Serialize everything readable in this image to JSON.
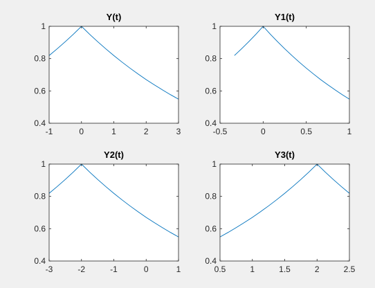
{
  "figure": {
    "background": "#f0f0f0",
    "axes_background": "#ffffff",
    "axis_color": "#262626",
    "line_color": "#0072bd"
  },
  "chart_data": [
    {
      "type": "line",
      "title": "Y(t)",
      "xlabel": "",
      "ylabel": "",
      "xlim": [
        -1,
        3
      ],
      "ylim": [
        0.4,
        1
      ],
      "xticks": [
        -1,
        0,
        1,
        2,
        3
      ],
      "xtick_labels": [
        "-1",
        "0",
        "1",
        "2",
        "3"
      ],
      "yticks": [
        0.4,
        0.6,
        0.8,
        1
      ],
      "ytick_labels": [
        "0.4",
        "0.6",
        "0.8",
        "1"
      ],
      "grid": false,
      "series": [
        {
          "x": [
            -1,
            -0.75,
            -0.5,
            -0.25,
            0,
            0.25,
            0.5,
            0.75,
            1,
            1.25,
            1.5,
            1.75,
            2,
            2.25,
            2.5,
            2.75,
            3
          ],
          "y": [
            0.819,
            0.861,
            0.905,
            0.951,
            1.0,
            0.951,
            0.905,
            0.861,
            0.819,
            0.779,
            0.741,
            0.705,
            0.67,
            0.638,
            0.607,
            0.577,
            0.549
          ]
        }
      ]
    },
    {
      "type": "line",
      "title": "Y1(t)",
      "xlabel": "",
      "ylabel": "",
      "xlim": [
        -0.5,
        1
      ],
      "ylim": [
        0.4,
        1
      ],
      "xticks": [
        -0.5,
        0,
        0.5,
        1
      ],
      "xtick_labels": [
        "-0.5",
        "0",
        "0.5",
        "1"
      ],
      "yticks": [
        0.4,
        0.6,
        0.8,
        1
      ],
      "ytick_labels": [
        "0.4",
        "0.6",
        "0.8",
        "1"
      ],
      "grid": false,
      "series": [
        {
          "x": [
            -0.333,
            -0.25,
            -0.1667,
            -0.0833,
            0,
            0.0833,
            0.1667,
            0.25,
            0.3333,
            0.4167,
            0.5,
            0.5833,
            0.6667,
            0.75,
            0.8333,
            0.9167,
            1
          ],
          "y": [
            0.819,
            0.861,
            0.905,
            0.951,
            1.0,
            0.951,
            0.905,
            0.861,
            0.819,
            0.779,
            0.741,
            0.705,
            0.67,
            0.638,
            0.607,
            0.577,
            0.549
          ]
        }
      ]
    },
    {
      "type": "line",
      "title": "Y2(t)",
      "xlabel": "",
      "ylabel": "",
      "xlim": [
        -3,
        1
      ],
      "ylim": [
        0.4,
        1
      ],
      "xticks": [
        -3,
        -2,
        -1,
        0,
        1
      ],
      "xtick_labels": [
        "-3",
        "-2",
        "-1",
        "0",
        "1"
      ],
      "yticks": [
        0.4,
        0.6,
        0.8,
        1
      ],
      "ytick_labels": [
        "0.4",
        "0.6",
        "0.8",
        "1"
      ],
      "grid": false,
      "series": [
        {
          "x": [
            -3,
            -2.75,
            -2.5,
            -2.25,
            -2,
            -1.75,
            -1.5,
            -1.25,
            -1,
            -0.75,
            -0.5,
            -0.25,
            0,
            0.25,
            0.5,
            0.75,
            1
          ],
          "y": [
            0.819,
            0.861,
            0.905,
            0.951,
            1.0,
            0.951,
            0.905,
            0.861,
            0.819,
            0.779,
            0.741,
            0.705,
            0.67,
            0.638,
            0.607,
            0.577,
            0.549
          ]
        }
      ]
    },
    {
      "type": "line",
      "title": "Y3(t)",
      "xlabel": "",
      "ylabel": "",
      "xlim": [
        0.5,
        2.5
      ],
      "ylim": [
        0.4,
        1
      ],
      "xticks": [
        0.5,
        1,
        1.5,
        2,
        2.5
      ],
      "xtick_labels": [
        "0.5",
        "1",
        "1.5",
        "2",
        "2.5"
      ],
      "yticks": [
        0.4,
        0.6,
        0.8,
        1
      ],
      "ytick_labels": [
        "0.4",
        "0.6",
        "0.8",
        "1"
      ],
      "grid": false,
      "series": [
        {
          "x": [
            0.5,
            0.625,
            0.75,
            0.875,
            1,
            1.125,
            1.25,
            1.375,
            1.5,
            1.625,
            1.75,
            1.875,
            2,
            2.125,
            2.25,
            2.375,
            2.5
          ],
          "y": [
            0.549,
            0.577,
            0.607,
            0.638,
            0.67,
            0.705,
            0.741,
            0.779,
            0.819,
            0.861,
            0.905,
            0.951,
            1.0,
            0.951,
            0.905,
            0.861,
            0.819
          ]
        }
      ]
    }
  ]
}
